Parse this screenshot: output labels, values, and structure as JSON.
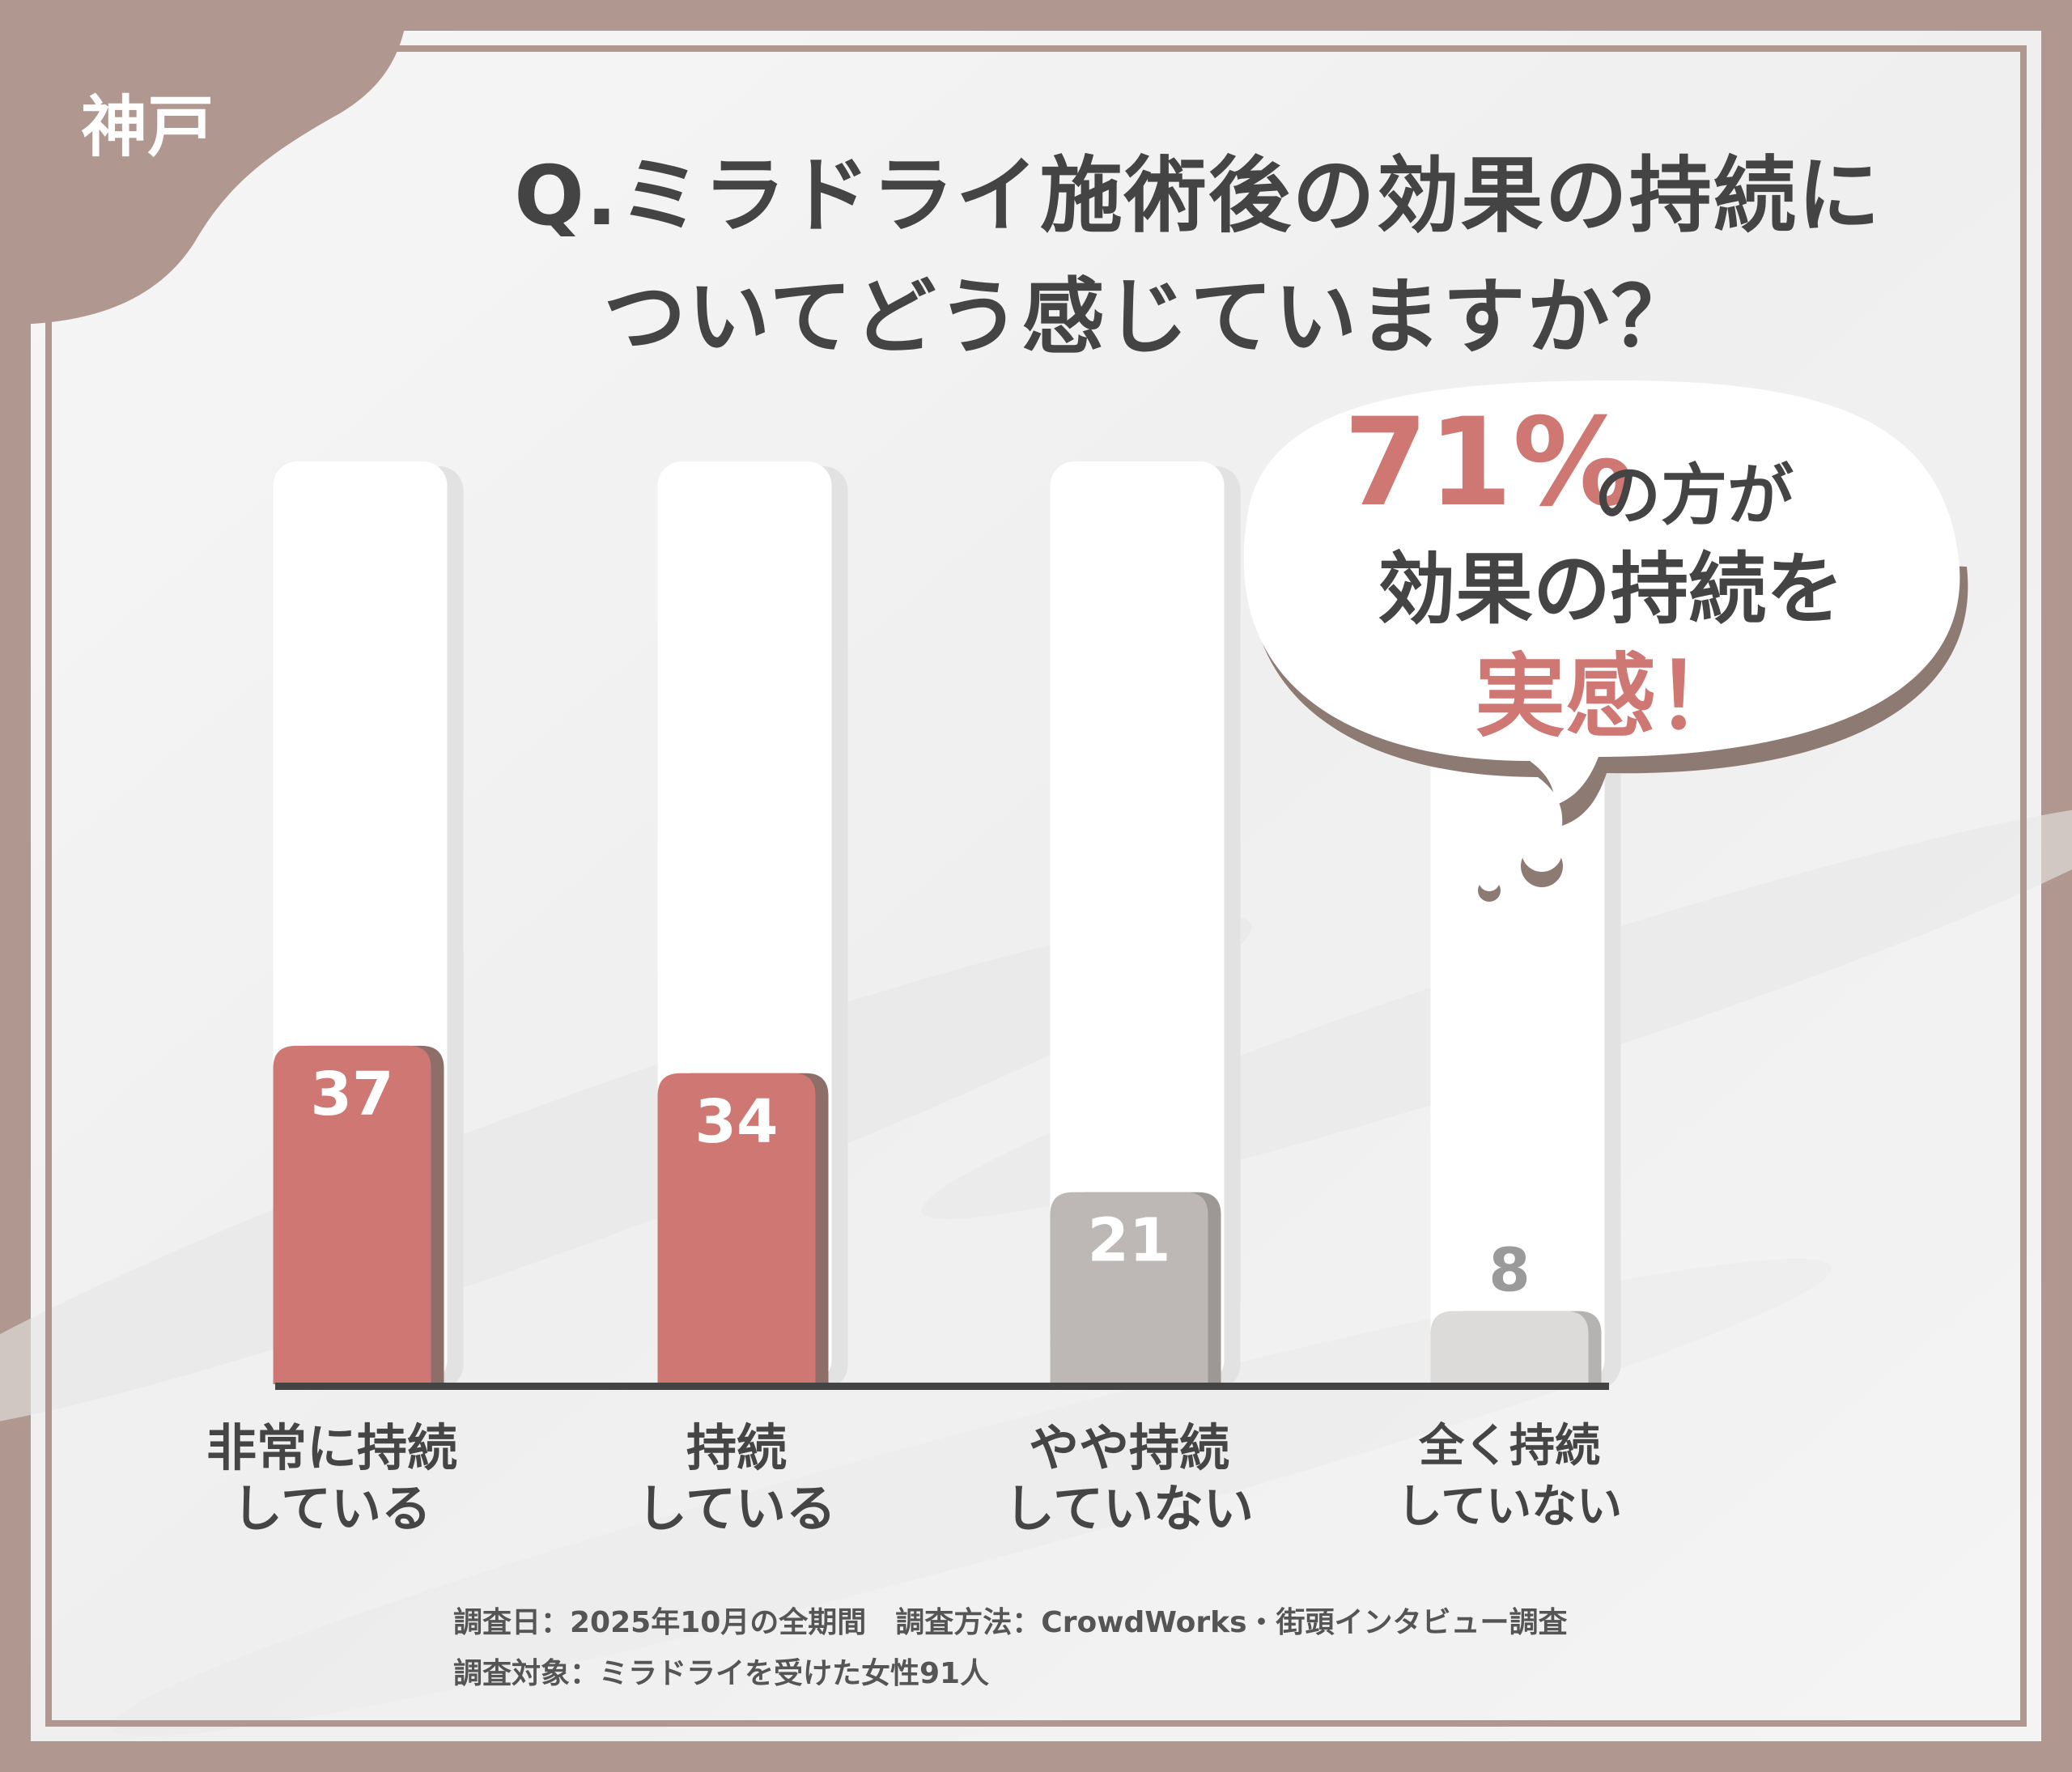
{
  "corner_tag": "神戸",
  "title": {
    "line1": "Q.ミラドライ施術後の効果の持続に",
    "line2": "ついてどう感じていますか？"
  },
  "callout": {
    "percent": "71%",
    "text1": "の方が",
    "text2": "効果の持続を",
    "text3": "実感！"
  },
  "chart_data": {
    "type": "bar",
    "categories": [
      "非常に持続している",
      "持続している",
      "やや持続していない",
      "全く持続していない"
    ],
    "category_lines": [
      [
        "非常に持続",
        "している"
      ],
      [
        "持続",
        "している"
      ],
      [
        "やや持続",
        "していない"
      ],
      [
        "全く持続",
        "していない"
      ]
    ],
    "values": [
      37,
      34,
      21,
      8
    ],
    "value_labels": [
      "37",
      "34",
      "21",
      "8"
    ],
    "unit": "%",
    "colors": [
      "#cf7873",
      "#cf7873",
      "#bdb8b6",
      "#dcdbda"
    ],
    "value_label_colors": [
      "#ffffff",
      "#ffffff",
      "#ffffff",
      "#9a9a9a"
    ]
  },
  "footer": {
    "line1": "調査日：2025年10月の全期間　調査方法：CrowdWorks・街頭インタビュー調査",
    "line2": "調査対象：ミラドライを受けた女性91人"
  },
  "colors": {
    "frame": "#b09890",
    "accent_red": "#cf7873",
    "text_dark": "#444444",
    "bubble_shadow": "#8d7a73"
  }
}
